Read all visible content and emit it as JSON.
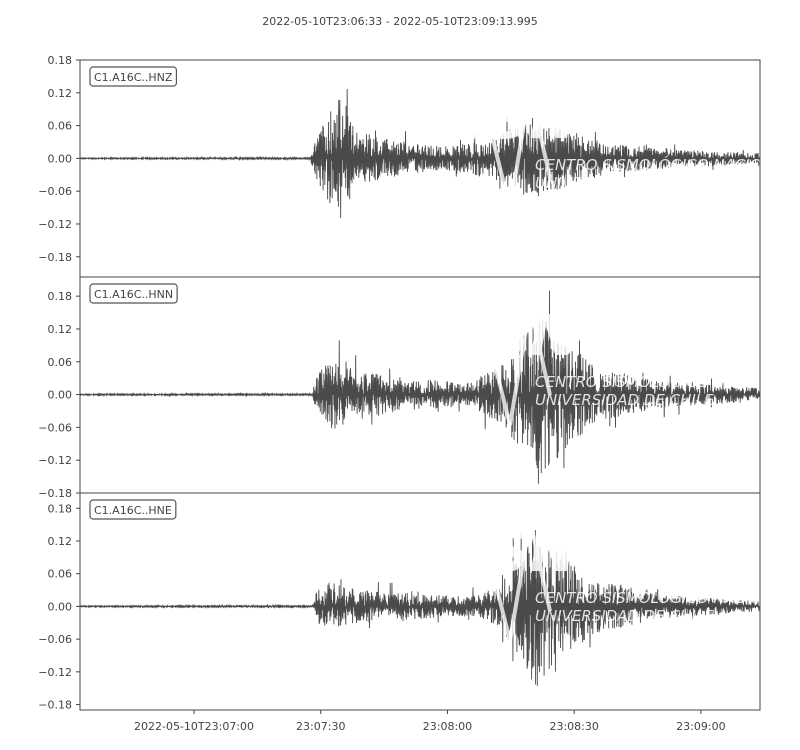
{
  "chart_data": {
    "type": "line",
    "title": "2022-05-10T23:06:33  -  2022-05-10T23:09:13.995",
    "start_time": "2022-05-10T23:06:33",
    "end_time": "2022-05-10T23:09:13.995",
    "x_ticks": [
      "2022-05-10T23:07:00",
      "23:07:30",
      "23:08:00",
      "23:08:30",
      "23:09:00"
    ],
    "x_tick_times": [
      "23:07:00",
      "23:07:30",
      "23:08:00",
      "23:08:30",
      "23:09:00"
    ],
    "y_ticks": [
      "0.18",
      "0.12",
      "0.06",
      "0.00",
      "−0.06",
      "−0.12",
      "−0.18"
    ],
    "y_tick_values": [
      0.18,
      0.12,
      0.06,
      0.0,
      -0.06,
      -0.12,
      -0.18
    ],
    "grid": false,
    "trace_color": "#4a4a4a",
    "watermark": [
      "CSN",
      "CENTRO SISMOLÓGICO NACIONAL",
      "UNIVERSIDAD DE CHILE"
    ],
    "series": [
      {
        "name": "C1.A16C..HNZ",
        "ylim": [
          -0.217,
          0.18
        ],
        "onset": "23:07:27.5",
        "envelope": [
          [
            "23:06:33",
            0.001
          ],
          [
            "23:07:27.5",
            0.002
          ],
          [
            "23:07:29",
            0.04
          ],
          [
            "23:07:33",
            0.1
          ],
          [
            "23:07:35",
            0.12
          ],
          [
            "23:07:38",
            0.05
          ],
          [
            "23:07:50",
            0.03
          ],
          [
            "23:08:00",
            0.022
          ],
          [
            "23:08:10",
            0.035
          ],
          [
            "23:08:20",
            0.075
          ],
          [
            "23:08:25",
            0.06
          ],
          [
            "23:08:40",
            0.025
          ],
          [
            "23:09:00",
            0.015
          ],
          [
            "23:09:14",
            0.01
          ]
        ]
      },
      {
        "name": "C1.A16C..HNN",
        "ylim": [
          -0.18,
          0.215
        ],
        "onset": "23:07:28",
        "envelope": [
          [
            "23:06:33",
            0.001
          ],
          [
            "23:07:28",
            0.002
          ],
          [
            "23:07:29",
            0.04
          ],
          [
            "23:07:33",
            0.07
          ],
          [
            "23:07:37",
            0.05
          ],
          [
            "23:07:50",
            0.03
          ],
          [
            "23:08:05",
            0.022
          ],
          [
            "23:08:12",
            0.05
          ],
          [
            "23:08:18",
            0.11
          ],
          [
            "23:08:22",
            0.15
          ],
          [
            "23:08:27",
            0.11
          ],
          [
            "23:08:35",
            0.05
          ],
          [
            "23:08:50",
            0.025
          ],
          [
            "23:09:14",
            0.012
          ]
        ]
      },
      {
        "name": "C1.A16C..HNE",
        "ylim": [
          -0.19,
          0.208
        ],
        "onset": "23:07:28",
        "envelope": [
          [
            "23:06:33",
            0.001
          ],
          [
            "23:07:28",
            0.002
          ],
          [
            "23:07:29",
            0.03
          ],
          [
            "23:07:33",
            0.045
          ],
          [
            "23:07:40",
            0.03
          ],
          [
            "23:07:50",
            0.025
          ],
          [
            "23:08:05",
            0.018
          ],
          [
            "23:08:12",
            0.035
          ],
          [
            "23:08:17",
            0.09
          ],
          [
            "23:08:21",
            0.15
          ],
          [
            "23:08:26",
            0.1
          ],
          [
            "23:08:35",
            0.05
          ],
          [
            "23:08:50",
            0.022
          ],
          [
            "23:09:14",
            0.01
          ]
        ]
      }
    ]
  }
}
